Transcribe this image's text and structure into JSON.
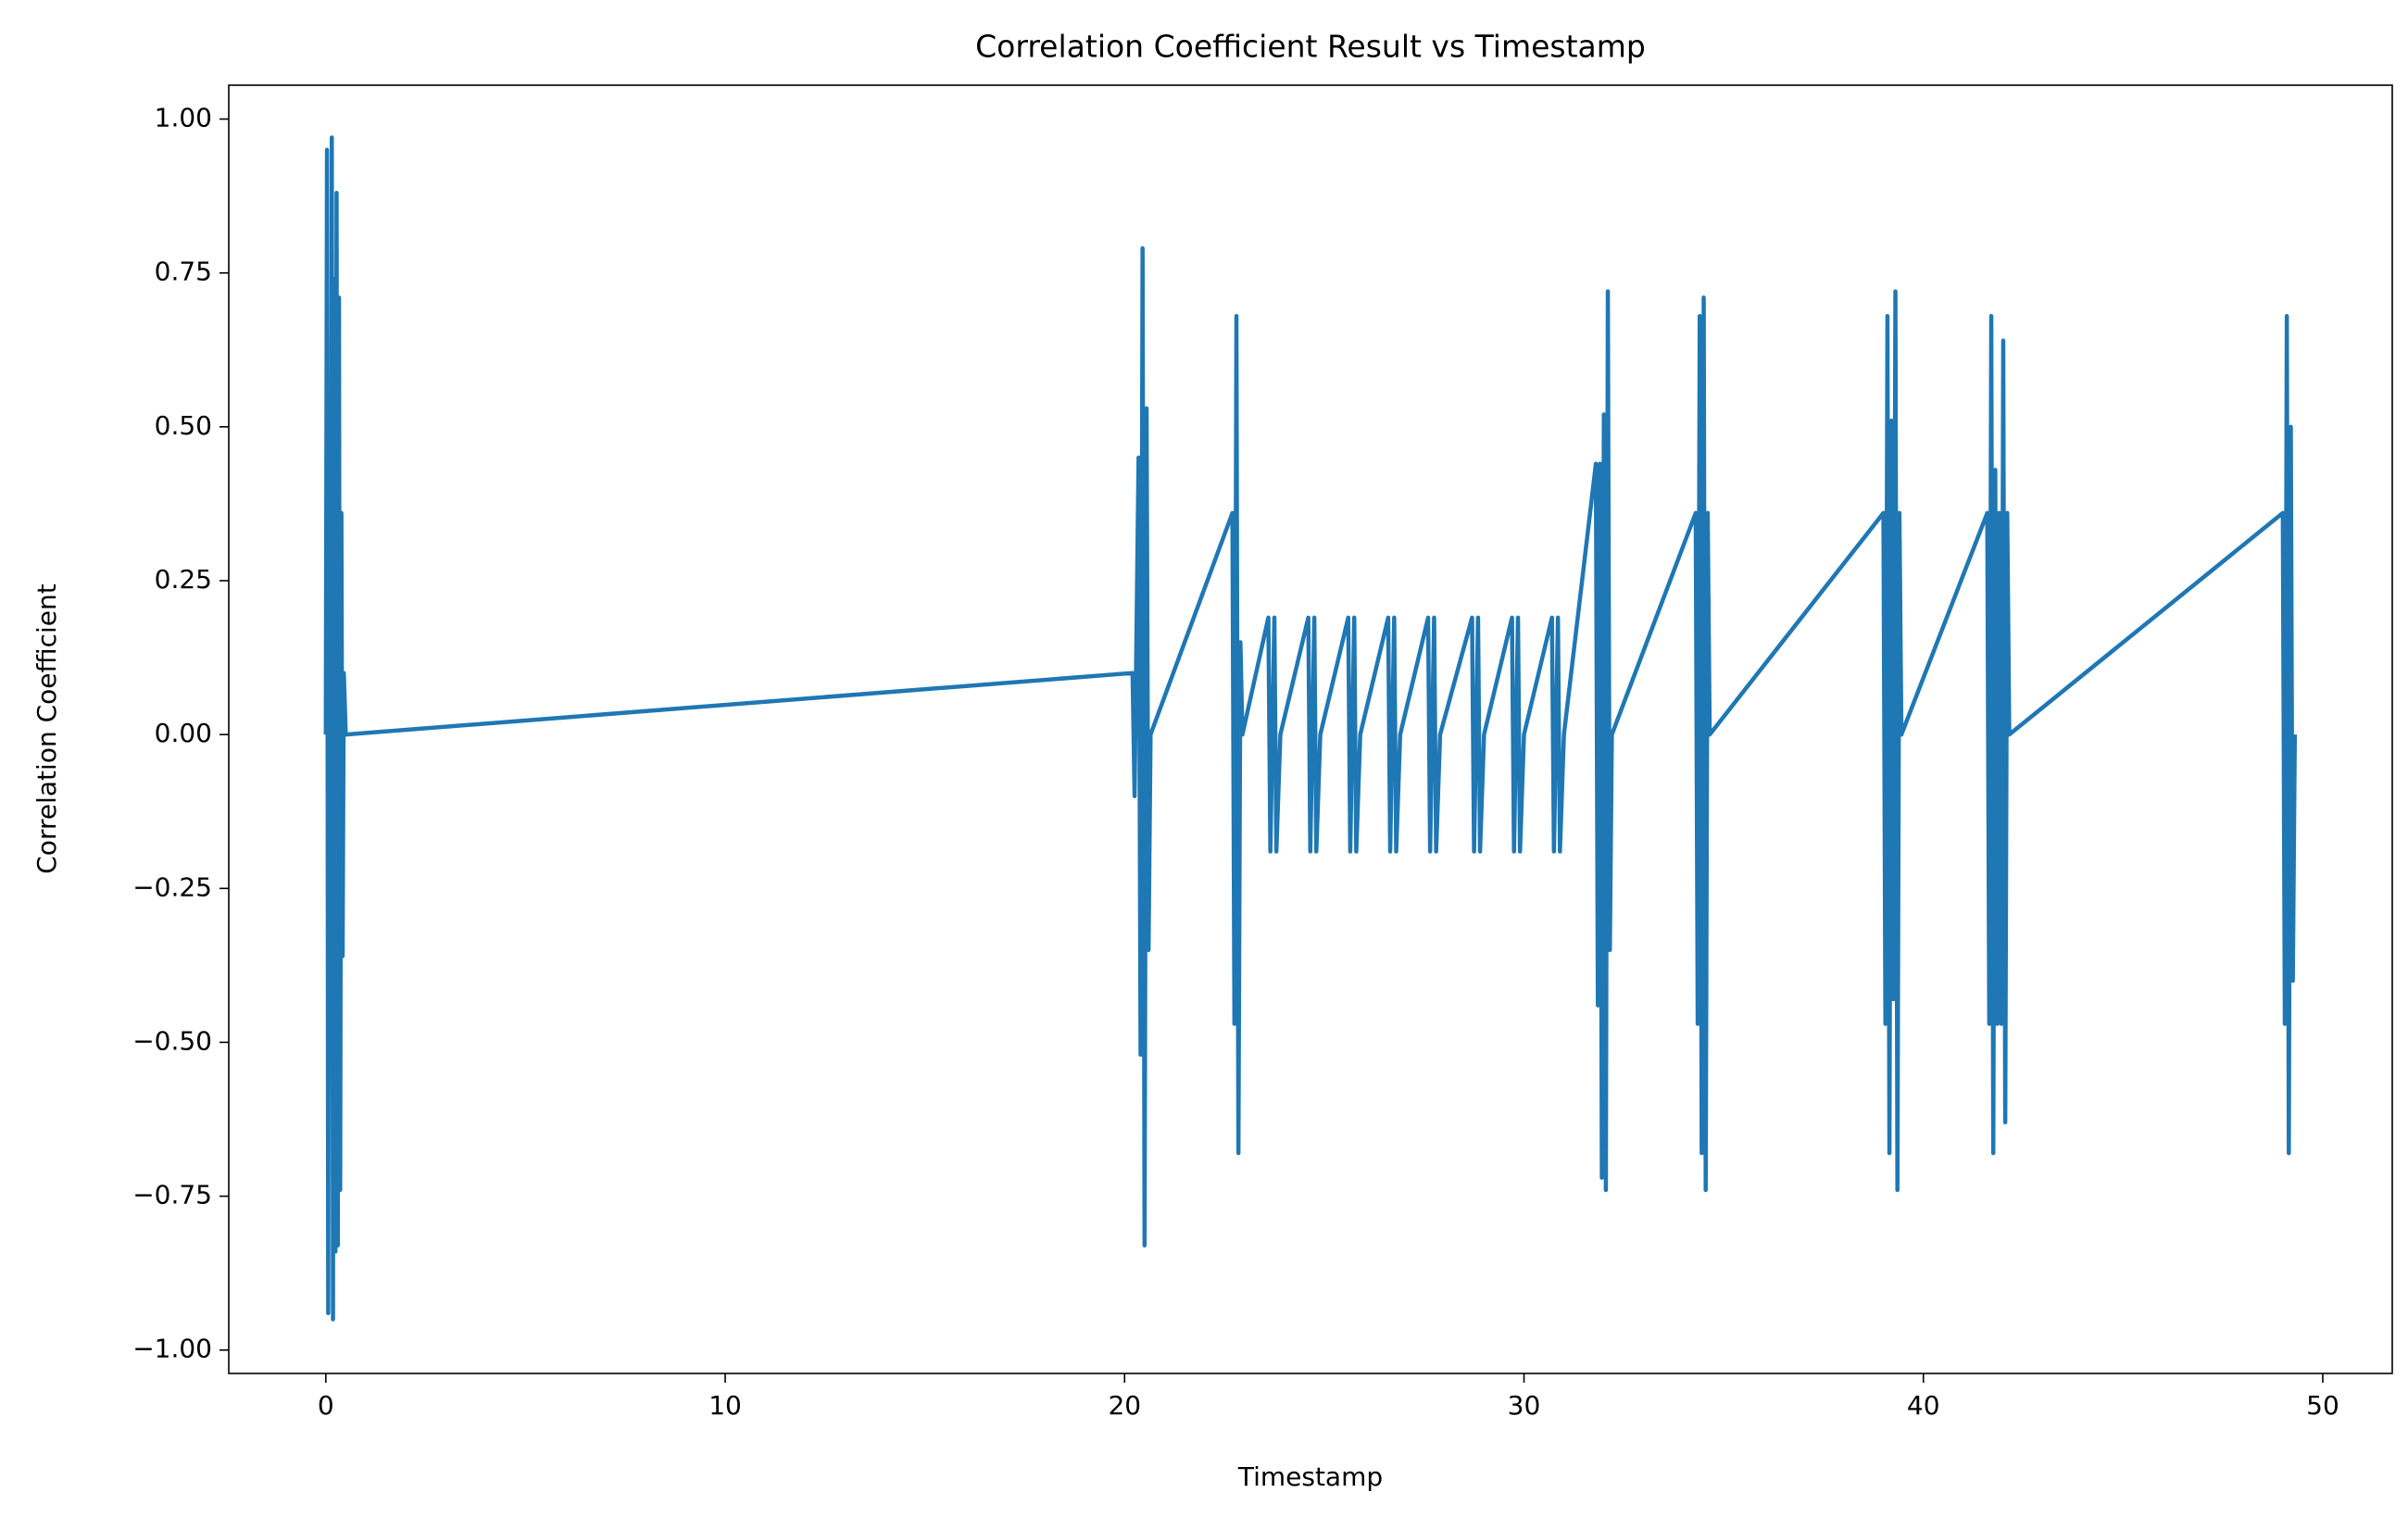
{
  "chart_data": {
    "type": "line",
    "title": "Correlation Coefficient Result vs Timestamp",
    "x_label": "Timestamp",
    "y_label": "Correlation Coefficient",
    "xlim": [
      -2.43,
      51.74
    ],
    "ylim": [
      -1.038,
      1.055
    ],
    "xticks": [
      0,
      10,
      20,
      30,
      40,
      50
    ],
    "yticks": [
      {
        "value": -1,
        "label": "−1.00"
      },
      {
        "value": -0.75,
        "label": "−0.75"
      },
      {
        "value": -0.5,
        "label": "−0.50"
      },
      {
        "value": -0.25,
        "label": "−0.25"
      },
      {
        "value": 0,
        "label": "0.00"
      },
      {
        "value": 0.25,
        "label": "0.25"
      },
      {
        "value": 0.5,
        "label": "0.50"
      },
      {
        "value": 0.75,
        "label": "0.75"
      },
      {
        "value": 1,
        "label": "1.00"
      }
    ],
    "series": [
      {
        "color": "#1f77b4",
        "x": [
          0,
          0.03,
          0.06,
          0.09,
          0.12,
          0.15,
          0.18,
          0.21,
          0.24,
          0.27,
          0.3,
          0.33,
          0.36,
          0.39,
          0.42,
          0.45,
          0.5,
          20.2,
          20.25,
          20.35,
          20.4,
          20.45,
          20.5,
          20.55,
          20.6,
          20.65,
          22.7,
          22.75,
          22.8,
          22.85,
          22.9,
          22.95,
          23.6,
          23.65,
          23.75,
          23.8,
          23.9,
          24.6,
          24.65,
          24.75,
          24.8,
          24.9,
          25.6,
          25.65,
          25.75,
          25.8,
          25.9,
          26.6,
          26.65,
          26.75,
          26.8,
          26.9,
          27.6,
          27.65,
          27.75,
          27.8,
          27.9,
          28.7,
          28.75,
          28.85,
          28.9,
          29.0,
          29.7,
          29.75,
          29.85,
          29.9,
          30.0,
          30.7,
          30.75,
          30.85,
          30.9,
          31.0,
          31.8,
          31.85,
          31.9,
          31.95,
          32.0,
          32.05,
          32.1,
          32.15,
          32.2,
          34.3,
          34.35,
          34.4,
          34.45,
          34.5,
          34.55,
          34.6,
          34.65,
          39.0,
          39.05,
          39.1,
          39.15,
          39.2,
          39.25,
          39.3,
          39.35,
          39.4,
          39.45,
          41.6,
          41.65,
          41.7,
          41.75,
          41.8,
          41.85,
          41.9,
          41.95,
          42.0,
          42.05,
          42.1,
          42.15,
          49.0,
          49.05,
          49.1,
          49.15,
          49.2,
          49.25,
          49.3
        ],
        "values": [
          0,
          0.95,
          -0.94,
          0.5,
          -0.4,
          0.97,
          -0.95,
          0.74,
          -0.84,
          0.88,
          -0.83,
          0.71,
          -0.74,
          0.36,
          -0.36,
          0.1,
          0,
          0.1,
          -0.1,
          0.45,
          -0.52,
          0.79,
          -0.83,
          0.53,
          -0.35,
          0,
          0.36,
          -0.47,
          0.68,
          -0.68,
          0.15,
          0,
          0.19,
          -0.19,
          0.19,
          -0.19,
          0,
          0.19,
          -0.19,
          0.19,
          -0.19,
          0,
          0.19,
          -0.19,
          0.19,
          -0.19,
          0,
          0.19,
          -0.19,
          0.19,
          -0.19,
          0,
          0.19,
          -0.19,
          0.19,
          -0.19,
          0,
          0.19,
          -0.19,
          0.19,
          -0.19,
          0,
          0.19,
          -0.19,
          0.19,
          -0.19,
          0,
          0.19,
          -0.19,
          0.19,
          -0.19,
          0,
          0.44,
          -0.44,
          0.44,
          -0.72,
          0.52,
          -0.74,
          0.72,
          -0.35,
          0,
          0.36,
          -0.47,
          0.68,
          -0.68,
          0.71,
          -0.74,
          0.36,
          0,
          0.36,
          -0.47,
          0.68,
          -0.68,
          0.51,
          -0.43,
          0.72,
          -0.74,
          0.36,
          0,
          0.36,
          -0.47,
          0.68,
          -0.68,
          0.43,
          -0.47,
          0.36,
          -0.47,
          0.64,
          -0.63,
          0.36,
          0,
          0.36,
          -0.47,
          0.68,
          -0.68,
          0.5,
          -0.4,
          0
        ]
      }
    ]
  }
}
